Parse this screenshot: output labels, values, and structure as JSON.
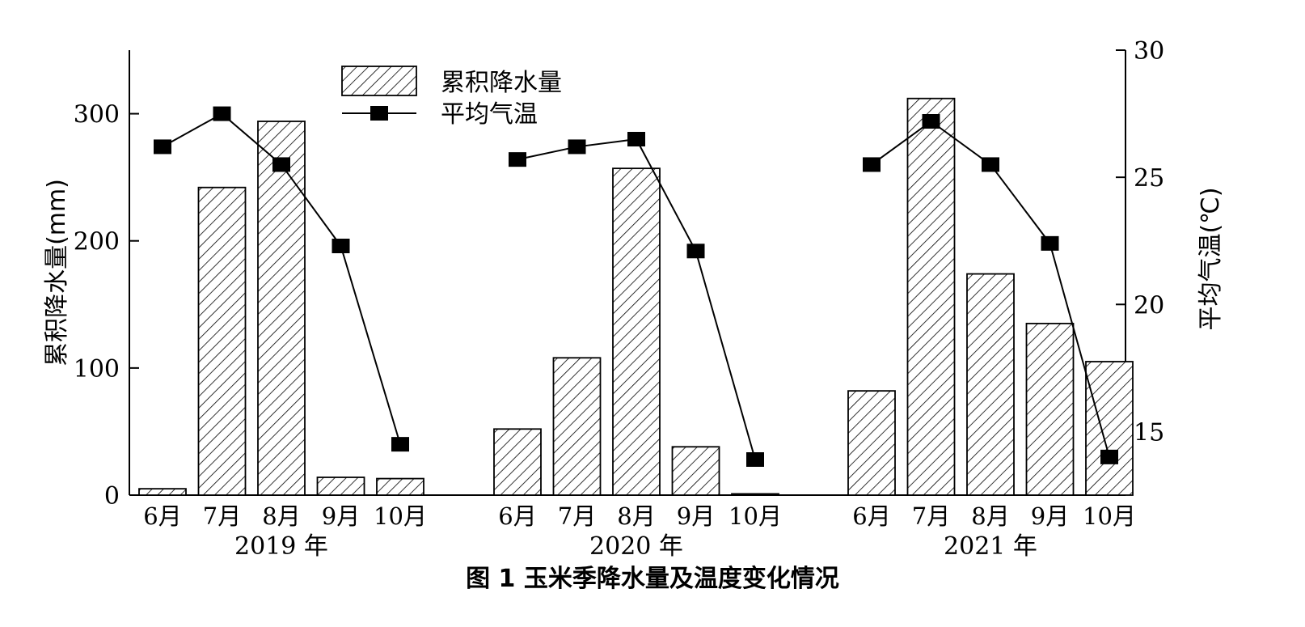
{
  "chart_data": {
    "type": "bar",
    "caption": "图 1  玉米季降水量及温度变化情况",
    "ylabel_left": "累积降水量(mm)",
    "ylabel_right": "平均气温(℃)",
    "ylim_left": [
      0,
      350
    ],
    "ylim_right": [
      12.5,
      30
    ],
    "yticks_left": [
      0,
      100,
      200,
      300
    ],
    "yticks_right": [
      15,
      20,
      25,
      30
    ],
    "legend": {
      "position": "top-left",
      "bar_label": "累积降水量",
      "line_label": "平均气温"
    },
    "grid": false,
    "groups": [
      {
        "label": "2019 年",
        "months": [
          "6月",
          "7月",
          "8月",
          "9月",
          "10月"
        ],
        "precipitation": [
          5,
          242,
          294,
          14,
          13
        ],
        "temperature": [
          26.2,
          27.5,
          25.5,
          22.3,
          14.5
        ]
      },
      {
        "label": "2020 年",
        "months": [
          "6月",
          "7月",
          "8月",
          "9月",
          "10月"
        ],
        "precipitation": [
          52,
          108,
          257,
          38,
          1
        ],
        "temperature": [
          25.7,
          26.2,
          26.5,
          22.1,
          13.9
        ]
      },
      {
        "label": "2021 年",
        "months": [
          "6月",
          "7月",
          "8月",
          "9月",
          "10月"
        ],
        "precipitation": [
          82,
          312,
          174,
          135,
          105
        ],
        "temperature": [
          25.5,
          27.2,
          25.5,
          22.4,
          14.0
        ]
      }
    ]
  }
}
